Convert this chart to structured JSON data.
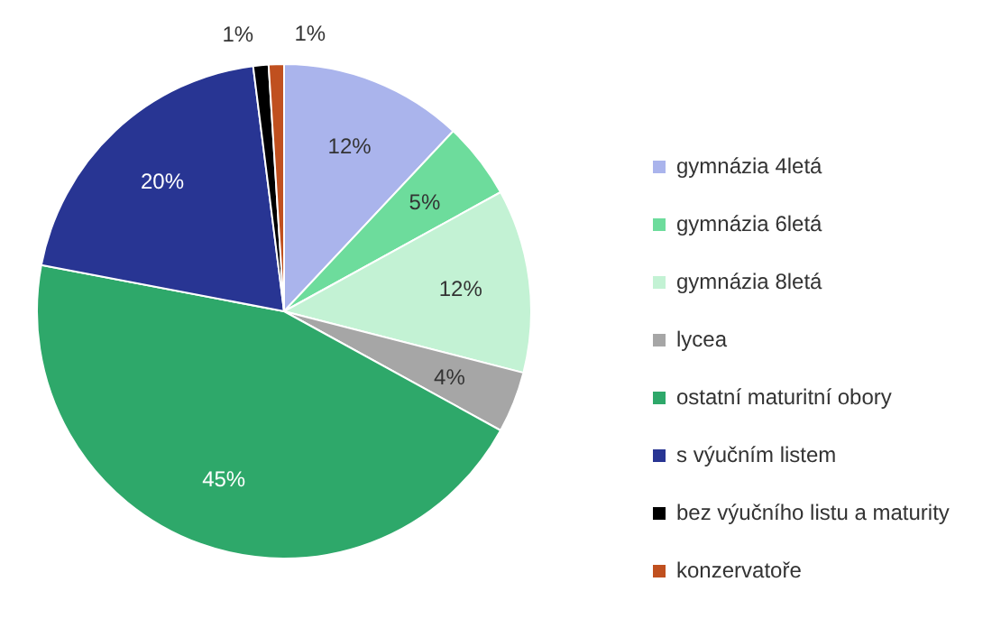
{
  "chart_data": {
    "type": "pie",
    "categories": [
      "gymnázia 4letá",
      "gymnázia 6letá",
      "gymnázia 8letá",
      "lycea",
      "ostatní maturitní obory",
      "s výučním listem",
      "bez výučního listu a maturity",
      "konzervatoře"
    ],
    "values": [
      12,
      5,
      12,
      4,
      45,
      20,
      1,
      1
    ],
    "value_labels": [
      "12%",
      "5%",
      "12%",
      "4%",
      "45%",
      "20%",
      "1%",
      "1%"
    ],
    "colors": [
      "#aab4ec",
      "#6ddc9c",
      "#c3f2d4",
      "#a6a6a6",
      "#2ea86a",
      "#283593",
      "#000000",
      "#c0501f"
    ],
    "legend": "right"
  }
}
